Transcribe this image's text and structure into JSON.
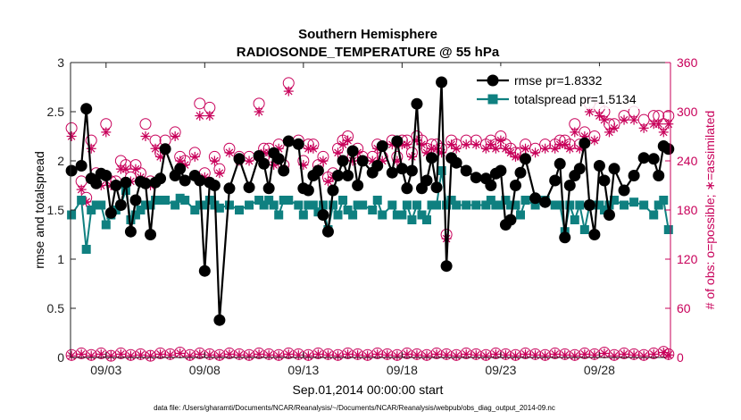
{
  "chart_data": {
    "type": "line",
    "title": "Southern Hemisphere",
    "subtitle": "RADIOSONDE_TEMPERATURE @ 55 hPa",
    "xlabel": "Sep.01,2014 00:00:00 start",
    "ylabel_left": "rmse and totalspread",
    "ylabel_right": "# of obs: o=possible; ∗=assimilated",
    "footer": "data file: /Users/gharamti/Documents/NCAR/Reanalysis/~/Documents/NCAR/Reanalysis/webpub/obs_diag_output_2014-09.nc",
    "x_tick_labels": [
      "09/03",
      "09/08",
      "09/13",
      "09/18",
      "09/23",
      "09/28"
    ],
    "x_tick_days": [
      3,
      8,
      13,
      18,
      23,
      28
    ],
    "xlim_days": [
      1.2,
      31.6
    ],
    "ylim_left": [
      0,
      3
    ],
    "y_ticks_left": [
      "0",
      "0.5",
      "1",
      "1.5",
      "2",
      "2.5",
      "3"
    ],
    "ylim_right": [
      0,
      360
    ],
    "y_ticks_right": [
      "0",
      "60",
      "120",
      "180",
      "240",
      "300",
      "360"
    ],
    "grid": false,
    "legend_position": "top-right",
    "legend": [
      "rmse pr=1.8332",
      "totalspread pr=1.5134"
    ],
    "colors": {
      "rmse": "#000000",
      "spread": "#0f8080",
      "obs": "#c8005a"
    },
    "series": [
      {
        "name": "rmse",
        "axis": "left",
        "x_days": [
          1.25,
          1.75,
          2.0,
          2.25,
          2.5,
          2.75,
          3.0,
          3.25,
          3.5,
          3.75,
          4.0,
          4.25,
          4.5,
          4.75,
          5.0,
          5.25,
          5.5,
          5.75,
          6.0,
          6.5,
          6.75,
          7.0,
          7.5,
          7.75,
          8.0,
          8.25,
          8.5,
          8.75,
          9.25,
          9.75,
          10.25,
          10.75,
          11.0,
          11.25,
          11.5,
          11.75,
          12.0,
          12.25,
          12.75,
          13.0,
          13.25,
          13.5,
          13.75,
          14.0,
          14.25,
          14.5,
          14.75,
          15.0,
          15.25,
          15.5,
          15.75,
          16.0,
          16.5,
          16.75,
          17.0,
          17.5,
          17.75,
          18.0,
          18.25,
          18.5,
          18.75,
          19.0,
          19.25,
          19.5,
          19.75,
          20.0,
          20.25,
          20.5,
          20.75,
          21.25,
          21.75,
          22.25,
          22.5,
          22.75,
          23.0,
          23.25,
          23.5,
          23.75,
          24.0,
          24.25,
          24.75,
          25.25,
          25.75,
          26.0,
          26.25,
          26.5,
          26.75,
          27.0,
          27.25,
          27.5,
          27.75,
          28.0,
          28.25,
          28.5,
          28.75,
          29.25,
          29.75,
          30.25,
          30.75,
          31.0,
          31.25,
          31.5
        ],
        "values": [
          1.9,
          1.95,
          2.53,
          1.82,
          1.77,
          1.87,
          1.85,
          1.47,
          1.75,
          1.55,
          1.78,
          1.28,
          1.6,
          1.79,
          1.77,
          1.25,
          1.78,
          1.82,
          2.12,
          1.85,
          1.92,
          1.8,
          1.85,
          1.8,
          0.88,
          1.78,
          1.75,
          0.38,
          1.72,
          2.02,
          1.73,
          2.05,
          1.97,
          1.72,
          2.08,
          2.02,
          1.9,
          2.2,
          2.17,
          1.72,
          1.7,
          1.85,
          1.9,
          1.45,
          1.28,
          1.7,
          1.85,
          2.0,
          1.85,
          2.1,
          1.75,
          2.0,
          1.88,
          1.95,
          2.15,
          1.88,
          2.2,
          1.92,
          1.72,
          1.9,
          2.58,
          1.72,
          1.8,
          2.03,
          1.73,
          2.8,
          0.93,
          2.03,
          1.98,
          1.9,
          1.83,
          1.82,
          1.75,
          1.87,
          1.9,
          1.35,
          1.4,
          1.75,
          1.88,
          2.02,
          1.62,
          1.58,
          1.8,
          1.97,
          1.22,
          1.75,
          1.85,
          1.92,
          2.18,
          1.55,
          1.25,
          1.95,
          1.8,
          1.45,
          1.92,
          1.7,
          1.85,
          2.03,
          2.02,
          1.85,
          2.15,
          2.12
        ],
        "marker": "filled-circle"
      },
      {
        "name": "totalspread",
        "axis": "left",
        "x_days": [
          1.25,
          1.75,
          2.0,
          2.25,
          2.5,
          2.75,
          3.0,
          3.25,
          3.5,
          3.75,
          4.0,
          4.25,
          4.5,
          4.75,
          5.0,
          5.25,
          5.5,
          5.75,
          6.0,
          6.5,
          6.75,
          7.0,
          7.5,
          7.75,
          8.0,
          8.25,
          8.5,
          8.75,
          9.25,
          9.75,
          10.25,
          10.75,
          11.0,
          11.25,
          11.5,
          11.75,
          12.0,
          12.25,
          12.75,
          13.0,
          13.25,
          13.5,
          13.75,
          14.0,
          14.25,
          14.5,
          14.75,
          15.0,
          15.25,
          15.5,
          15.75,
          16.0,
          16.5,
          16.75,
          17.0,
          17.5,
          17.75,
          18.0,
          18.25,
          18.5,
          18.75,
          19.0,
          19.25,
          19.5,
          19.75,
          20.0,
          20.25,
          20.5,
          20.75,
          21.25,
          21.75,
          22.25,
          22.5,
          22.75,
          23.0,
          23.25,
          23.5,
          23.75,
          24.0,
          24.25,
          24.75,
          25.25,
          25.75,
          26.0,
          26.25,
          26.5,
          26.75,
          27.0,
          27.25,
          27.5,
          27.75,
          28.0,
          28.25,
          28.5,
          28.75,
          29.25,
          29.75,
          30.25,
          30.75,
          31.0,
          31.25,
          31.5
        ],
        "values": [
          1.45,
          1.6,
          1.1,
          1.5,
          1.55,
          1.55,
          1.35,
          1.45,
          1.5,
          1.55,
          1.7,
          1.4,
          1.45,
          1.5,
          1.55,
          1.55,
          1.6,
          1.6,
          1.6,
          1.55,
          1.62,
          1.6,
          1.5,
          1.55,
          1.55,
          1.6,
          1.55,
          1.52,
          1.55,
          1.5,
          1.55,
          1.6,
          1.55,
          1.6,
          1.55,
          1.45,
          1.6,
          1.6,
          1.55,
          1.45,
          1.55,
          1.55,
          1.48,
          1.55,
          1.3,
          1.55,
          1.45,
          1.6,
          1.5,
          1.45,
          1.55,
          1.55,
          1.5,
          1.6,
          1.45,
          1.55,
          1.45,
          1.45,
          1.55,
          1.4,
          1.55,
          1.45,
          1.4,
          1.55,
          1.55,
          1.9,
          1.55,
          1.6,
          1.55,
          1.55,
          1.55,
          1.55,
          1.6,
          1.55,
          1.55,
          1.6,
          1.55,
          1.55,
          1.45,
          1.6,
          1.55,
          1.6,
          1.55,
          1.55,
          1.28,
          1.55,
          1.4,
          1.55,
          1.3,
          1.55,
          1.55,
          1.55,
          1.5,
          1.55,
          1.6,
          1.55,
          1.58,
          1.55,
          1.45,
          1.55,
          1.6,
          1.3
        ],
        "marker": "filled-square"
      },
      {
        "name": "obs possible (upper)",
        "axis": "right",
        "x_days": [
          1.25,
          1.75,
          2.0,
          2.25,
          2.5,
          2.75,
          3.0,
          3.25,
          3.5,
          3.75,
          4.0,
          4.25,
          4.5,
          4.75,
          5.0,
          5.25,
          5.5,
          5.75,
          6.0,
          6.5,
          6.75,
          7.0,
          7.5,
          7.75,
          8.0,
          8.25,
          8.5,
          8.75,
          9.25,
          9.75,
          10.25,
          10.75,
          11.0,
          11.25,
          11.5,
          11.75,
          12.0,
          12.25,
          12.75,
          13.0,
          13.25,
          13.5,
          13.75,
          14.0,
          14.25,
          14.5,
          14.75,
          15.0,
          15.25,
          15.5,
          15.75,
          16.0,
          16.5,
          16.75,
          17.0,
          17.5,
          17.75,
          18.0,
          18.25,
          18.5,
          18.75,
          19.0,
          19.25,
          19.5,
          19.75,
          20.0,
          20.25,
          20.5,
          20.75,
          21.25,
          21.75,
          22.25,
          22.5,
          22.75,
          23.0,
          23.25,
          23.5,
          23.75,
          24.0,
          24.25,
          24.75,
          25.25,
          25.75,
          26.0,
          26.25,
          26.5,
          26.75,
          27.0,
          27.25,
          27.5,
          27.75,
          28.0,
          28.25,
          28.5,
          28.75,
          29.25,
          29.75,
          30.25,
          30.75,
          31.0,
          31.25,
          31.5
        ],
        "values": [
          280,
          215,
          195,
          265,
          225,
          215,
          285,
          215,
          215,
          240,
          235,
          220,
          235,
          225,
          285,
          215,
          265,
          250,
          265,
          275,
          245,
          240,
          250,
          310,
          225,
          305,
          245,
          230,
          255,
          245,
          245,
          310,
          255,
          255,
          240,
          260,
          235,
          335,
          265,
          240,
          260,
          260,
          235,
          245,
          220,
          225,
          255,
          265,
          270,
          245,
          255,
          245,
          245,
          260,
          245,
          265,
          245,
          265,
          265,
          250,
          270,
          265,
          255,
          260,
          260,
          255,
          150,
          265,
          260,
          265,
          265,
          260,
          265,
          260,
          270,
          260,
          255,
          250,
          250,
          260,
          255,
          260,
          260,
          265,
          265,
          260,
          285,
          260,
          275,
          310,
          270,
          305,
          300,
          285,
          285,
          295,
          300,
          290,
          295,
          295,
          285,
          295
        ],
        "marker": "open-circle"
      },
      {
        "name": "obs assimilated (upper)",
        "axis": "right",
        "x_days": [
          1.25,
          1.75,
          2.0,
          2.25,
          2.5,
          2.75,
          3.0,
          3.25,
          3.5,
          3.75,
          4.0,
          4.25,
          4.5,
          4.75,
          5.0,
          5.25,
          5.5,
          5.75,
          6.0,
          6.5,
          6.75,
          7.0,
          7.5,
          7.75,
          8.0,
          8.25,
          8.5,
          8.75,
          9.25,
          9.75,
          10.25,
          10.75,
          11.0,
          11.25,
          11.5,
          11.75,
          12.0,
          12.25,
          12.75,
          13.0,
          13.25,
          13.5,
          13.75,
          14.0,
          14.25,
          14.5,
          14.75,
          15.0,
          15.25,
          15.5,
          15.75,
          16.0,
          16.5,
          16.75,
          17.0,
          17.5,
          17.75,
          18.0,
          18.25,
          18.5,
          18.75,
          19.0,
          19.25,
          19.5,
          19.75,
          20.0,
          20.25,
          20.5,
          20.75,
          21.25,
          21.75,
          22.25,
          22.5,
          22.75,
          23.0,
          23.25,
          23.5,
          23.75,
          24.0,
          24.25,
          24.75,
          25.25,
          25.75,
          26.0,
          26.25,
          26.5,
          26.75,
          27.0,
          27.25,
          27.5,
          27.75,
          28.0,
          28.25,
          28.5,
          28.75,
          29.25,
          29.75,
          30.25,
          30.75,
          31.0,
          31.25,
          31.5
        ],
        "values": [
          270,
          205,
          190,
          255,
          215,
          210,
          275,
          210,
          210,
          230,
          230,
          215,
          230,
          220,
          270,
          210,
          255,
          245,
          255,
          270,
          240,
          235,
          245,
          295,
          220,
          295,
          240,
          225,
          250,
          240,
          240,
          300,
          250,
          250,
          235,
          255,
          230,
          325,
          260,
          235,
          255,
          255,
          230,
          240,
          215,
          220,
          250,
          260,
          265,
          240,
          250,
          240,
          240,
          255,
          240,
          260,
          240,
          260,
          260,
          245,
          265,
          260,
          250,
          255,
          255,
          250,
          145,
          260,
          255,
          260,
          260,
          255,
          260,
          255,
          265,
          255,
          250,
          245,
          245,
          255,
          250,
          255,
          255,
          260,
          260,
          255,
          275,
          255,
          270,
          300,
          265,
          295,
          290,
          275,
          280,
          290,
          290,
          280,
          285,
          285,
          275,
          285
        ],
        "marker": "asterisk"
      },
      {
        "name": "obs possible (lower)",
        "axis": "right",
        "x_days": [
          1.25,
          1.75,
          2.25,
          2.75,
          3.25,
          3.75,
          4.25,
          4.75,
          5.25,
          5.75,
          6.25,
          6.75,
          7.25,
          7.75,
          8.25,
          8.75,
          9.25,
          9.75,
          10.25,
          10.75,
          11.25,
          11.75,
          12.25,
          12.75,
          13.25,
          13.75,
          14.25,
          14.75,
          15.25,
          15.75,
          16.25,
          16.75,
          17.25,
          17.75,
          18.25,
          18.75,
          19.25,
          19.75,
          20.25,
          20.75,
          21.25,
          21.75,
          22.25,
          22.75,
          23.25,
          23.75,
          24.25,
          24.75,
          25.25,
          25.75,
          26.25,
          26.75,
          27.25,
          27.75,
          28.25,
          28.75,
          29.25,
          29.75,
          30.25,
          30.75,
          31.25,
          31.5
        ],
        "values": [
          3,
          5,
          3,
          5,
          2,
          5,
          3,
          4,
          2,
          5,
          4,
          6,
          3,
          5,
          4,
          3,
          5,
          4,
          3,
          5,
          4,
          3,
          5,
          4,
          3,
          5,
          4,
          3,
          5,
          4,
          3,
          5,
          4,
          3,
          5,
          4,
          3,
          5,
          4,
          3,
          5,
          4,
          3,
          5,
          4,
          3,
          5,
          4,
          3,
          5,
          4,
          3,
          5,
          4,
          6,
          3,
          5,
          4,
          3,
          5,
          7,
          4
        ],
        "marker": "open-circle"
      },
      {
        "name": "obs assimilated (lower)",
        "axis": "right",
        "x_days": [
          1.25,
          1.75,
          2.25,
          2.75,
          3.25,
          3.75,
          4.25,
          4.75,
          5.25,
          5.75,
          6.25,
          6.75,
          7.25,
          7.75,
          8.25,
          8.75,
          9.25,
          9.75,
          10.25,
          10.75,
          11.25,
          11.75,
          12.25,
          12.75,
          13.25,
          13.75,
          14.25,
          14.75,
          15.25,
          15.75,
          16.25,
          16.75,
          17.25,
          17.75,
          18.25,
          18.75,
          19.25,
          19.75,
          20.25,
          20.75,
          21.25,
          21.75,
          22.25,
          22.75,
          23.25,
          23.75,
          24.25,
          24.75,
          25.25,
          25.75,
          26.25,
          26.75,
          27.25,
          27.75,
          28.25,
          28.75,
          29.25,
          29.75,
          30.25,
          30.75,
          31.25,
          31.5
        ],
        "values": [
          2,
          4,
          2,
          4,
          2,
          4,
          2,
          3,
          2,
          4,
          3,
          5,
          2,
          4,
          3,
          2,
          4,
          3,
          2,
          4,
          3,
          2,
          4,
          3,
          2,
          4,
          3,
          2,
          4,
          3,
          2,
          4,
          3,
          2,
          4,
          3,
          2,
          4,
          3,
          2,
          4,
          3,
          2,
          4,
          3,
          2,
          4,
          3,
          2,
          4,
          3,
          2,
          4,
          3,
          5,
          2,
          4,
          3,
          2,
          4,
          6,
          3
        ],
        "marker": "asterisk"
      }
    ]
  }
}
